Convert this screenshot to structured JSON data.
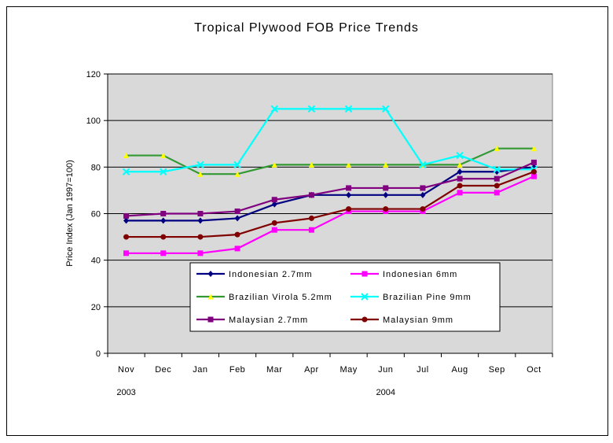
{
  "chart_data": {
    "type": "line",
    "title": "Tropical Plywood FOB Price Trends",
    "xlabel": "",
    "ylabel": "Price Index (Jan 1997=100)",
    "ylim": [
      0,
      120
    ],
    "yticks": [
      0,
      20,
      40,
      60,
      80,
      100,
      120
    ],
    "categories": [
      "Nov",
      "Dec",
      "Jan",
      "Feb",
      "Mar",
      "Apr",
      "May",
      "Jun",
      "Jul",
      "Aug",
      "Sep",
      "Oct"
    ],
    "year_labels": [
      {
        "label": "2003",
        "at_category": "Nov"
      },
      {
        "label": "2004",
        "at_category": "Jun"
      }
    ],
    "grid": "horizontal",
    "plot_background": "#d9d9d9",
    "legend_position": "lower-center",
    "series": [
      {
        "name": "Indonesian 2.7mm",
        "color": "#000080",
        "marker": "diamond",
        "values": [
          57,
          57,
          57,
          58,
          64,
          68,
          68,
          68,
          68,
          78,
          78,
          80
        ]
      },
      {
        "name": "Indonesian 6mm",
        "color": "#ff00ff",
        "marker": "square",
        "values": [
          43,
          43,
          43,
          45,
          53,
          53,
          61,
          61,
          61,
          69,
          69,
          76
        ]
      },
      {
        "name": "Brazilian Virola 5.2mm",
        "color": "#339933",
        "marker": "triangle",
        "marker_color": "#ffff00",
        "values": [
          85,
          85,
          77,
          77,
          81,
          81,
          81,
          81,
          81,
          81,
          88,
          88
        ]
      },
      {
        "name": "Brazilian Pine 9mm",
        "color": "#00ffff",
        "marker": "x",
        "values": [
          78,
          78,
          81,
          81,
          105,
          105,
          105,
          105,
          81,
          85,
          79,
          79
        ]
      },
      {
        "name": "Malaysian 2.7mm",
        "color": "#800080",
        "marker": "square",
        "values": [
          59,
          60,
          60,
          61,
          66,
          68,
          71,
          71,
          71,
          75,
          75,
          82
        ]
      },
      {
        "name": "Malaysian 9mm",
        "color": "#800000",
        "marker": "circle",
        "values": [
          50,
          50,
          50,
          51,
          56,
          58,
          62,
          62,
          62,
          72,
          72,
          78
        ]
      }
    ]
  }
}
